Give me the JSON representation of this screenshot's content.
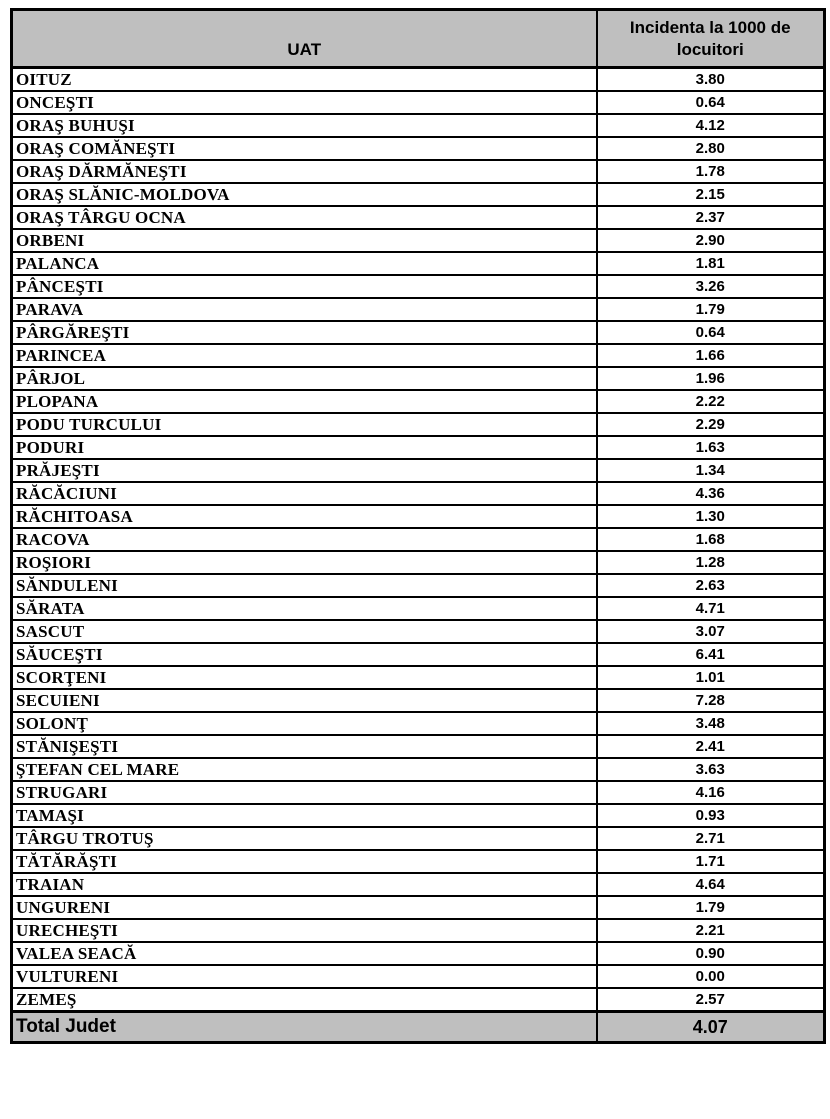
{
  "colors": {
    "header_bg": "#bfbfbf",
    "total_bg": "#bfbfbf",
    "border": "#000000",
    "text": "#000000",
    "row_bg": "#ffffff"
  },
  "table": {
    "columns": [
      {
        "label": "UAT"
      },
      {
        "label": "Incidenta la 1000 de locuitori"
      }
    ],
    "rows": [
      {
        "uat": "OITUZ",
        "incidence": "3.80"
      },
      {
        "uat": "ONCEŞTI",
        "incidence": "0.64"
      },
      {
        "uat": "ORAŞ BUHUŞI",
        "incidence": "4.12"
      },
      {
        "uat": "ORAŞ COMĂNEŞTI",
        "incidence": "2.80"
      },
      {
        "uat": "ORAŞ DĂRMĂNEŞTI",
        "incidence": "1.78"
      },
      {
        "uat": "ORAŞ SLĂNIC-MOLDOVA",
        "incidence": "2.15"
      },
      {
        "uat": "ORAŞ TÂRGU OCNA",
        "incidence": "2.37"
      },
      {
        "uat": "ORBENI",
        "incidence": "2.90"
      },
      {
        "uat": "PALANCA",
        "incidence": "1.81"
      },
      {
        "uat": "PÂNCEŞTI",
        "incidence": "3.26"
      },
      {
        "uat": "PARAVA",
        "incidence": "1.79"
      },
      {
        "uat": "PÂRGĂREŞTI",
        "incidence": "0.64"
      },
      {
        "uat": "PARINCEA",
        "incidence": "1.66"
      },
      {
        "uat": "PÂRJOL",
        "incidence": "1.96"
      },
      {
        "uat": "PLOPANA",
        "incidence": "2.22"
      },
      {
        "uat": "PODU TURCULUI",
        "incidence": "2.29"
      },
      {
        "uat": "PODURI",
        "incidence": "1.63"
      },
      {
        "uat": "PRĂJEŞTI",
        "incidence": "1.34"
      },
      {
        "uat": "RĂCĂCIUNI",
        "incidence": "4.36"
      },
      {
        "uat": "RĂCHITOASA",
        "incidence": "1.30"
      },
      {
        "uat": "RACOVA",
        "incidence": "1.68"
      },
      {
        "uat": "ROŞIORI",
        "incidence": "1.28"
      },
      {
        "uat": "SĂNDULENI",
        "incidence": "2.63"
      },
      {
        "uat": "SĂRATA",
        "incidence": "4.71"
      },
      {
        "uat": "SASCUT",
        "incidence": "3.07"
      },
      {
        "uat": "SĂUCEŞTI",
        "incidence": "6.41"
      },
      {
        "uat": "SCORŢENI",
        "incidence": "1.01"
      },
      {
        "uat": "SECUIENI",
        "incidence": "7.28"
      },
      {
        "uat": "SOLONŢ",
        "incidence": "3.48"
      },
      {
        "uat": "STĂNIŞEŞTI",
        "incidence": "2.41"
      },
      {
        "uat": "ŞTEFAN CEL MARE",
        "incidence": "3.63"
      },
      {
        "uat": "STRUGARI",
        "incidence": "4.16"
      },
      {
        "uat": "TAMAŞI",
        "incidence": "0.93"
      },
      {
        "uat": "TÂRGU TROTUŞ",
        "incidence": "2.71"
      },
      {
        "uat": "TĂTĂRĂŞTI",
        "incidence": "1.71"
      },
      {
        "uat": "TRAIAN",
        "incidence": "4.64"
      },
      {
        "uat": "UNGURENI",
        "incidence": "1.79"
      },
      {
        "uat": "URECHEŞTI",
        "incidence": "2.21"
      },
      {
        "uat": "VALEA SEACĂ",
        "incidence": "0.90"
      },
      {
        "uat": "VULTURENI",
        "incidence": "0.00"
      },
      {
        "uat": "ZEMEŞ",
        "incidence": "2.57"
      }
    ],
    "total": {
      "label": "Total Judet",
      "value": "4.07"
    }
  }
}
